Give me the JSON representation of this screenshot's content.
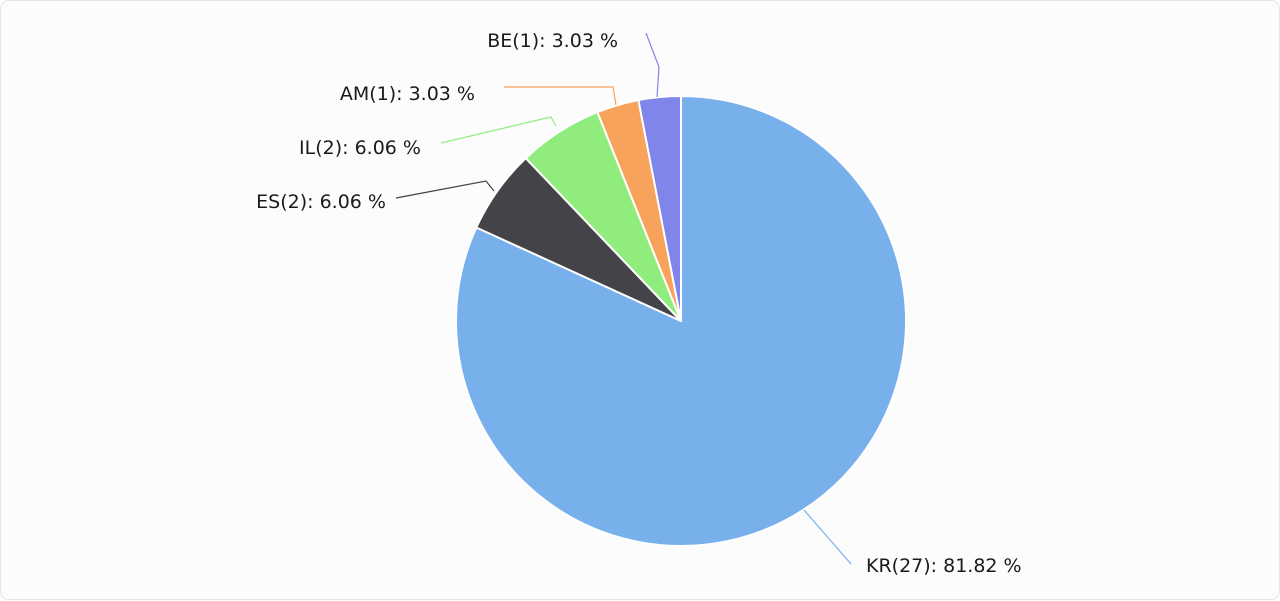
{
  "chart_data": {
    "type": "pie",
    "slices": [
      {
        "label": "KR(27): 81.82 %",
        "name": "KR",
        "count": 27,
        "percent": 81.82,
        "color": "#78b0ec"
      },
      {
        "label": "ES(2): 6.06 %",
        "name": "ES",
        "count": 2,
        "percent": 6.06,
        "color": "#434348"
      },
      {
        "label": "IL(2): 6.06 %",
        "name": "IL",
        "count": 2,
        "percent": 6.06,
        "color": "#90ed7d"
      },
      {
        "label": "AM(1): 3.03 %",
        "name": "AM",
        "count": 1,
        "percent": 3.03,
        "color": "#f7a35c"
      },
      {
        "label": "BE(1): 3.03 %",
        "name": "BE",
        "count": 1,
        "percent": 3.03,
        "color": "#8085e9"
      }
    ],
    "legend": "none",
    "data_labels": "outside-with-connectors"
  }
}
